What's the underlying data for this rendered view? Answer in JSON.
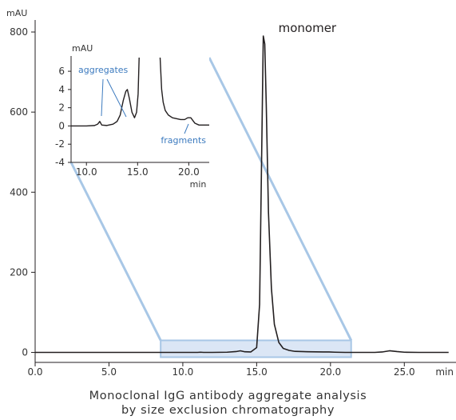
{
  "chart_data": {
    "type": "line",
    "caption_line1": "Monoclonal IgG antibody aggregate analysis",
    "caption_line2": "by size exclusion chromatography",
    "y_unit": "mAU",
    "x_unit": "min",
    "xlim": [
      0,
      28.5
    ],
    "ylim": [
      -25,
      830
    ],
    "x_ticks": [
      0,
      5,
      10,
      15,
      20,
      25
    ],
    "x_tick_labels": [
      "0.0",
      "5.0",
      "10.0",
      "15.0",
      "20.0",
      "25.0"
    ],
    "y_ticks": [
      0,
      200,
      400,
      600,
      800
    ],
    "y_tick_labels": [
      "0",
      "200",
      "400",
      "600",
      "800"
    ],
    "grid": false,
    "series": [
      {
        "color": "#231f20",
        "x": [
          0,
          5,
          8,
          10,
          11,
          11.2,
          11.4,
          12,
          13,
          13.6,
          13.9,
          14.2,
          14.6,
          15.0,
          15.2,
          15.35,
          15.45,
          15.55,
          15.65,
          15.8,
          16.0,
          16.2,
          16.5,
          16.8,
          17.2,
          17.6,
          18.5,
          19.5,
          19.9,
          20.3,
          21,
          22,
          23,
          23.5,
          24,
          24.5,
          25,
          26,
          28
        ],
        "y": [
          0,
          0,
          0,
          0,
          0,
          0.5,
          0,
          0,
          0.5,
          2,
          4,
          1.5,
          1,
          12,
          120,
          520,
          790,
          770,
          620,
          350,
          160,
          70,
          25,
          10,
          5,
          2.5,
          1.5,
          1,
          1,
          0.5,
          0,
          0,
          0,
          1,
          4,
          2,
          0.5,
          0,
          0
        ]
      }
    ],
    "annotations": [
      {
        "text": "monomer",
        "x": 15.5,
        "y": 790
      }
    ],
    "inset": {
      "type": "line",
      "y_unit": "mAU",
      "x_unit": "min",
      "xlim": [
        8.5,
        22
      ],
      "ylim": [
        -4,
        7.5
      ],
      "x_ticks": [
        10,
        15,
        20
      ],
      "x_tick_labels": [
        "10.0",
        "15.0",
        "20.0"
      ],
      "y_ticks": [
        -4,
        -2,
        0,
        2,
        4,
        6
      ],
      "y_tick_labels": [
        "-4",
        "-2",
        "0",
        "2",
        "4",
        "6"
      ],
      "annotations": [
        {
          "text": "aggregates",
          "x": 12.5,
          "y": 5.2
        },
        {
          "text": "fragments",
          "x": 19.5,
          "y": -1.2
        }
      ],
      "series": [
        {
          "color": "#231f20",
          "x": [
            8.5,
            9,
            10,
            10.8,
            11.1,
            11.3,
            11.5,
            12,
            12.6,
            13,
            13.3,
            13.6,
            13.85,
            14.0,
            14.2,
            14.45,
            14.7,
            14.9,
            15.05,
            15.15,
            15.3,
            17.1,
            17.2,
            17.35,
            17.5,
            17.7,
            18.0,
            18.4,
            18.8,
            19.2,
            19.6,
            19.9,
            20.2,
            20.6,
            21,
            22
          ],
          "y": [
            0,
            0,
            0,
            0.05,
            0.2,
            0.5,
            0.1,
            0.05,
            0.2,
            0.5,
            1.2,
            2.8,
            3.8,
            4,
            3,
            1.5,
            0.9,
            1.5,
            3.5,
            7.5,
            12,
            12,
            7.5,
            4,
            2.6,
            1.7,
            1.2,
            0.9,
            0.8,
            0.7,
            0.7,
            0.9,
            0.9,
            0.3,
            0.1,
            0.1
          ]
        }
      ]
    },
    "zoom_box": {
      "x": [
        8.5,
        21.4
      ],
      "y": [
        -12,
        30
      ]
    }
  },
  "colors": {
    "axis": "#231f20",
    "trace": "#231f20",
    "zoom_fill": "#dbe6f5",
    "zoom_stroke": "#a8c7e6",
    "annotation_blue": "#3d7bbf"
  }
}
